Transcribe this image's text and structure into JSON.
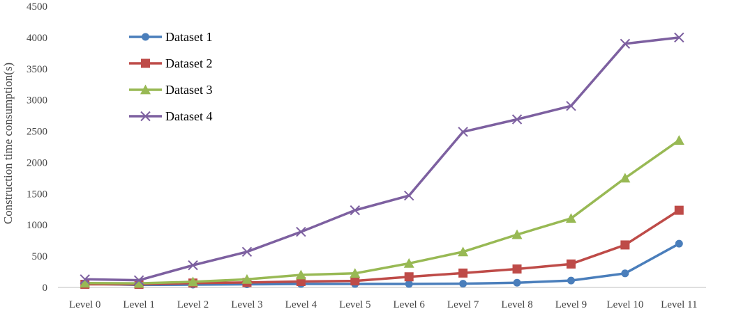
{
  "chart_data": {
    "type": "line",
    "title": "",
    "xlabel": "",
    "ylabel": "Construction time consumption(s)",
    "categories": [
      "Level 0",
      "Level 1",
      "Level 2",
      "Level 3",
      "Level 4",
      "Level 5",
      "Level 6",
      "Level 7",
      "Level 8",
      "Level 9",
      "Level 10",
      "Level 11"
    ],
    "ylim": [
      0,
      4500
    ],
    "yticks": [
      0,
      500,
      1000,
      1500,
      2000,
      2500,
      3000,
      3500,
      4000,
      4500
    ],
    "grid": false,
    "legend_position": "top-left",
    "series": [
      {
        "name": "Dataset 1",
        "color": "#4a7ebb",
        "marker": "circle",
        "values": [
          60,
          40,
          45,
          50,
          55,
          55,
          55,
          60,
          75,
          110,
          225,
          700
        ]
      },
      {
        "name": "Dataset 2",
        "color": "#be4b48",
        "marker": "square",
        "values": [
          50,
          50,
          70,
          80,
          95,
          105,
          170,
          230,
          295,
          375,
          680,
          1235
        ]
      },
      {
        "name": "Dataset 3",
        "color": "#98b954",
        "marker": "triangle",
        "values": [
          70,
          65,
          90,
          130,
          200,
          225,
          385,
          570,
          845,
          1105,
          1750,
          2355
        ]
      },
      {
        "name": "Dataset 4",
        "color": "#7d60a0",
        "marker": "x",
        "values": [
          130,
          115,
          355,
          570,
          890,
          1235,
          1470,
          2490,
          2690,
          2905,
          3900,
          4000
        ]
      }
    ]
  }
}
